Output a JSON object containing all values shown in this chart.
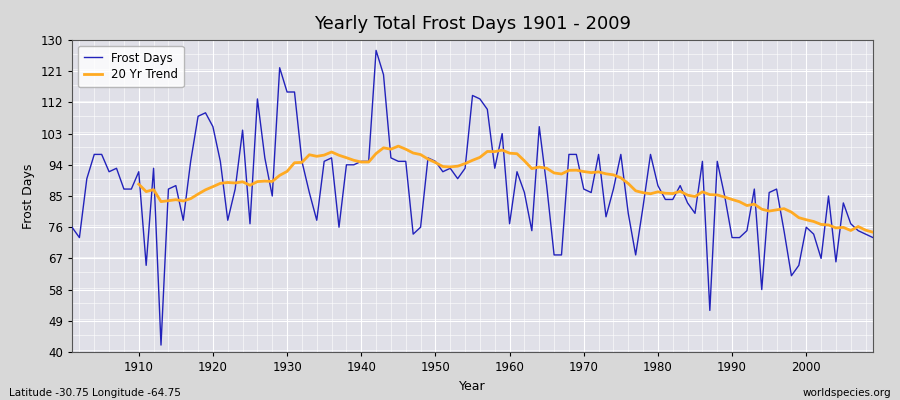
{
  "title": "Yearly Total Frost Days 1901 - 2009",
  "xlabel": "Year",
  "ylabel": "Frost Days",
  "subtitle": "Latitude -30.75 Longitude -64.75",
  "watermark": "worldspecies.org",
  "bg_color": "#d8d8d8",
  "plot_bg_color": "#e0e0e8",
  "line_color": "#2222bb",
  "trend_color": "#ffaa22",
  "ylim": [
    40,
    130
  ],
  "yticks": [
    40,
    49,
    58,
    67,
    76,
    85,
    94,
    103,
    112,
    121,
    130
  ],
  "frost_days": {
    "1901": 76,
    "1902": 73,
    "1903": 90,
    "1904": 97,
    "1905": 97,
    "1906": 92,
    "1907": 93,
    "1908": 87,
    "1909": 87,
    "1910": 92,
    "1911": 65,
    "1912": 93,
    "1913": 42,
    "1914": 87,
    "1915": 88,
    "1916": 78,
    "1917": 95,
    "1918": 108,
    "1919": 109,
    "1920": 105,
    "1921": 95,
    "1922": 78,
    "1923": 87,
    "1924": 104,
    "1925": 77,
    "1926": 113,
    "1927": 96,
    "1928": 85,
    "1929": 122,
    "1930": 115,
    "1931": 115,
    "1932": 95,
    "1933": 86,
    "1934": 78,
    "1935": 95,
    "1936": 96,
    "1937": 76,
    "1938": 94,
    "1939": 94,
    "1940": 95,
    "1941": 95,
    "1942": 127,
    "1943": 120,
    "1944": 96,
    "1945": 95,
    "1946": 95,
    "1947": 74,
    "1948": 76,
    "1949": 96,
    "1950": 95,
    "1951": 92,
    "1952": 93,
    "1953": 90,
    "1954": 93,
    "1955": 114,
    "1956": 113,
    "1957": 110,
    "1958": 93,
    "1959": 103,
    "1960": 77,
    "1961": 92,
    "1962": 86,
    "1963": 75,
    "1964": 105,
    "1965": 88,
    "1966": 68,
    "1967": 68,
    "1968": 97,
    "1969": 97,
    "1970": 87,
    "1971": 86,
    "1972": 97,
    "1973": 79,
    "1974": 87,
    "1975": 97,
    "1976": 80,
    "1977": 68,
    "1978": 82,
    "1979": 97,
    "1980": 88,
    "1981": 84,
    "1982": 84,
    "1983": 88,
    "1984": 83,
    "1985": 80,
    "1986": 95,
    "1987": 52,
    "1988": 95,
    "1989": 85,
    "1990": 73,
    "1991": 73,
    "1992": 75,
    "1993": 87,
    "1994": 58,
    "1995": 86,
    "1996": 87,
    "1997": 75,
    "1998": 62,
    "1999": 65,
    "2000": 76,
    "2001": 74,
    "2002": 67,
    "2003": 85,
    "2004": 66,
    "2005": 83,
    "2006": 77,
    "2007": 75,
    "2008": 74,
    "2009": 73
  }
}
